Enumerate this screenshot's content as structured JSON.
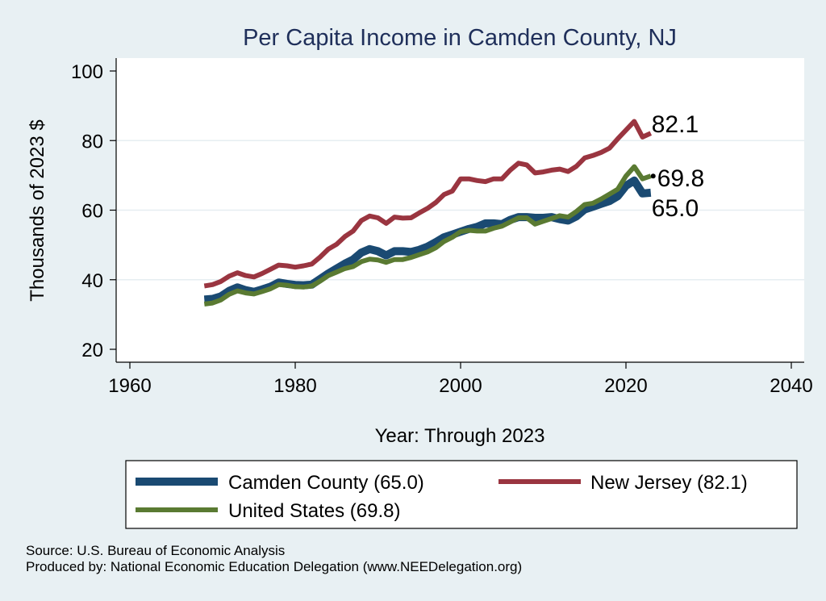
{
  "chart_data": {
    "type": "line",
    "title": "Per Capita Income in Camden County, NJ",
    "xlabel": "Year: Through 2023",
    "ylabel": "Thousands of 2023 $",
    "xlim": [
      1960,
      2040
    ],
    "ylim": [
      20,
      100
    ],
    "xticks": [
      1960,
      1980,
      2000,
      2020,
      2040
    ],
    "yticks": [
      20,
      40,
      60,
      80,
      100
    ],
    "grid": "horizontal",
    "legend_placement": "bottom",
    "x": [
      1969,
      1970,
      1971,
      1972,
      1973,
      1974,
      1975,
      1976,
      1977,
      1978,
      1979,
      1980,
      1981,
      1982,
      1983,
      1984,
      1985,
      1986,
      1987,
      1988,
      1989,
      1990,
      1991,
      1992,
      1993,
      1994,
      1995,
      1996,
      1997,
      1998,
      1999,
      2000,
      2001,
      2002,
      2003,
      2004,
      2005,
      2006,
      2007,
      2008,
      2009,
      2010,
      2011,
      2012,
      2013,
      2014,
      2015,
      2016,
      2017,
      2018,
      2019,
      2020,
      2021,
      2022,
      2023
    ],
    "series": [
      {
        "name": "Camden County",
        "legend_label": "Camden County (65.0)",
        "end_label": "65.0",
        "color": "#1a4a72",
        "values": [
          34.3,
          34.5,
          35.2,
          36.8,
          37.8,
          37.0,
          36.5,
          37.2,
          38.0,
          39.2,
          38.8,
          38.5,
          38.4,
          38.6,
          40.2,
          41.8,
          43.2,
          44.6,
          45.8,
          47.8,
          48.8,
          48.2,
          47.0,
          48.2,
          48.2,
          48.0,
          48.6,
          49.5,
          50.8,
          52.2,
          53.0,
          53.8,
          54.6,
          55.2,
          56.2,
          56.2,
          56.0,
          57.2,
          58.0,
          58.0,
          57.8,
          57.8,
          58.0,
          57.4,
          57.0,
          58.2,
          60.2,
          61.0,
          61.8,
          62.6,
          64.0,
          67.0,
          68.5,
          64.8,
          65.0
        ]
      },
      {
        "name": "New Jersey",
        "legend_label": "New Jersey (82.1)",
        "end_label": "82.1",
        "color": "#9a3540",
        "values": [
          38.2,
          38.6,
          39.5,
          41.0,
          42.0,
          41.2,
          40.8,
          41.8,
          43.0,
          44.2,
          44.0,
          43.6,
          44.0,
          44.5,
          46.5,
          48.8,
          50.2,
          52.4,
          54.0,
          57.0,
          58.3,
          57.8,
          56.2,
          58.0,
          57.7,
          57.8,
          59.2,
          60.5,
          62.2,
          64.5,
          65.5,
          69.0,
          69.0,
          68.5,
          68.2,
          69.0,
          69.0,
          71.5,
          73.5,
          73.0,
          70.7,
          71.0,
          71.5,
          71.8,
          71.1,
          72.6,
          75.0,
          75.7,
          76.6,
          77.8,
          80.5,
          83.0,
          85.5,
          81.0,
          82.1
        ]
      },
      {
        "name": "United States",
        "legend_label": "United States (69.8)",
        "end_label": "69.8",
        "color": "#5a7a32",
        "values": [
          33.0,
          33.3,
          34.2,
          35.8,
          36.8,
          36.2,
          35.9,
          36.6,
          37.4,
          38.6,
          38.4,
          38.0,
          37.9,
          38.2,
          39.6,
          41.2,
          42.2,
          43.2,
          43.8,
          45.2,
          45.9,
          45.7,
          45.0,
          45.8,
          45.8,
          46.4,
          47.2,
          48.0,
          49.2,
          51.0,
          52.2,
          53.8,
          54.2,
          54.0,
          54.0,
          54.8,
          55.4,
          56.6,
          57.8,
          57.8,
          56.0,
          56.8,
          57.6,
          58.4,
          58.0,
          59.6,
          61.6,
          62.0,
          63.2,
          64.6,
          66.0,
          69.8,
          72.5,
          69.0,
          69.8
        ]
      }
    ]
  },
  "footer": {
    "source": "Source: U.S. Bureau of Economic Analysis",
    "produced_by": "Produced by: National Economic Education Delegation (www.NEEDelegation.org)"
  }
}
